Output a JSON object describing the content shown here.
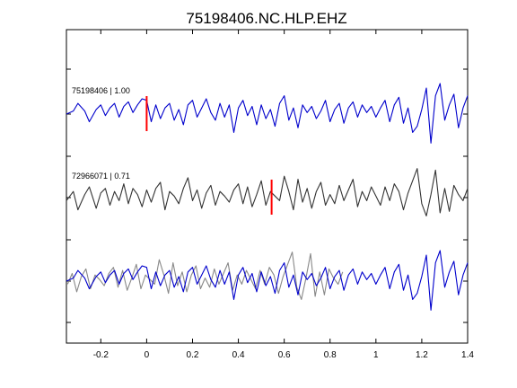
{
  "chart_data": {
    "type": "line",
    "title": "75198406.NC.HLP.EHZ",
    "xlim": [
      -0.35,
      1.4
    ],
    "x_ticks": [
      "-0.2",
      "0",
      "0.2",
      "0.4",
      "0.6",
      "0.8",
      "1",
      "1.2",
      "1.4"
    ],
    "x_tick_values": [
      -0.2,
      0,
      0.2,
      0.4,
      0.6,
      0.8,
      1.0,
      1.2,
      1.4
    ],
    "grid": false,
    "traces": [
      {
        "label": "75198406 | 1.00",
        "color": "#0000cc",
        "pick_time": 0.0,
        "pick_color": "#ff0000",
        "x": [
          -0.35,
          -0.32,
          -0.3,
          -0.27,
          -0.25,
          -0.22,
          -0.2,
          -0.18,
          -0.16,
          -0.14,
          -0.12,
          -0.1,
          -0.08,
          -0.06,
          -0.04,
          -0.02,
          0,
          0.02,
          0.04,
          0.06,
          0.08,
          0.1,
          0.12,
          0.14,
          0.16,
          0.18,
          0.2,
          0.22,
          0.24,
          0.26,
          0.28,
          0.3,
          0.32,
          0.34,
          0.36,
          0.38,
          0.4,
          0.42,
          0.44,
          0.46,
          0.48,
          0.5,
          0.52,
          0.54,
          0.56,
          0.58,
          0.6,
          0.62,
          0.64,
          0.66,
          0.68,
          0.7,
          0.72,
          0.74,
          0.76,
          0.78,
          0.8,
          0.82,
          0.84,
          0.86,
          0.88,
          0.9,
          0.92,
          0.94,
          0.96,
          0.98,
          1.0,
          1.02,
          1.04,
          1.06,
          1.08,
          1.1,
          1.12,
          1.14,
          1.16,
          1.18,
          1.2,
          1.22,
          1.24,
          1.26,
          1.28,
          1.3,
          1.32,
          1.34,
          1.36,
          1.38,
          1.4
        ],
        "y": [
          0,
          0.1,
          0.35,
          0.1,
          -0.25,
          0.15,
          0.3,
          -0.05,
          0.2,
          0.35,
          -0.1,
          0.25,
          0.4,
          0.05,
          0.3,
          0.5,
          0.45,
          -0.25,
          0.3,
          -0.15,
          0.2,
          0.35,
          -0.2,
          0.15,
          -0.35,
          0.3,
          0.45,
          -0.1,
          0.2,
          0.5,
          0.05,
          -0.2,
          0.35,
          -0.1,
          0.3,
          -0.6,
          0.2,
          0.45,
          -0.05,
          0.25,
          -0.35,
          0.3,
          -0.15,
          0.15,
          -0.4,
          0.35,
          0.6,
          -0.2,
          0.2,
          -0.45,
          0.3,
          0.05,
          0.25,
          -0.15,
          0.1,
          0.45,
          -0.25,
          0.15,
          0.35,
          -0.3,
          0.2,
          0.4,
          -0.1,
          0.3,
          0.05,
          0.25,
          -0.1,
          0.2,
          0.45,
          -0.25,
          0.3,
          0.55,
          -0.3,
          0.2,
          -0.6,
          -0.4,
          0.15,
          0.85,
          -0.95,
          0.6,
          1.0,
          -0.2,
          0.3,
          0.65,
          -0.45,
          0.2,
          0.6
        ]
      },
      {
        "label": "72966071 | 0.71",
        "color": "#333333",
        "pick_time": 0.545,
        "pick_color": "#ff0000",
        "x": [
          -0.35,
          -0.32,
          -0.3,
          -0.27,
          -0.25,
          -0.22,
          -0.2,
          -0.18,
          -0.16,
          -0.14,
          -0.12,
          -0.1,
          -0.08,
          -0.06,
          -0.04,
          -0.02,
          0,
          0.02,
          0.04,
          0.06,
          0.08,
          0.1,
          0.12,
          0.14,
          0.16,
          0.18,
          0.2,
          0.22,
          0.24,
          0.26,
          0.28,
          0.3,
          0.32,
          0.34,
          0.36,
          0.38,
          0.4,
          0.42,
          0.44,
          0.46,
          0.48,
          0.5,
          0.52,
          0.54,
          0.56,
          0.58,
          0.6,
          0.62,
          0.64,
          0.66,
          0.68,
          0.7,
          0.72,
          0.74,
          0.76,
          0.78,
          0.8,
          0.82,
          0.84,
          0.86,
          0.88,
          0.9,
          0.92,
          0.94,
          0.96,
          0.98,
          1.0,
          1.02,
          1.04,
          1.06,
          1.08,
          1.1,
          1.12,
          1.14,
          1.16,
          1.18,
          1.2,
          1.22,
          1.24,
          1.26,
          1.28,
          1.3,
          1.32,
          1.34,
          1.36,
          1.38,
          1.4
        ],
        "y": [
          -0.1,
          0.2,
          -0.4,
          0.1,
          0.35,
          -0.35,
          0.15,
          0.3,
          -0.25,
          0.2,
          -0.1,
          0.45,
          -0.2,
          0.3,
          0.1,
          -0.3,
          0.25,
          -0.15,
          0.3,
          0.5,
          -0.4,
          0.2,
          0.05,
          -0.2,
          0.3,
          0.65,
          -0.1,
          0.25,
          -0.35,
          0.15,
          0.4,
          -0.25,
          0.2,
          0.05,
          -0.15,
          0.25,
          0.45,
          -0.2,
          0.35,
          -0.3,
          0.1,
          0.55,
          -0.25,
          0.2,
          0.05,
          -0.1,
          0.7,
          0.2,
          -0.4,
          0.6,
          -0.15,
          0.3,
          -0.35,
          0.2,
          0.5,
          -0.25,
          0.1,
          -0.2,
          0.4,
          -0.1,
          0.25,
          0.6,
          -0.3,
          0.2,
          -0.1,
          0.35,
          0.05,
          -0.25,
          0.35,
          -0.1,
          0.45,
          0.2,
          -0.4,
          0.15,
          0.55,
          0.95,
          -0.2,
          -0.6,
          0.1,
          0.9,
          -0.5,
          0.3,
          -0.45,
          0.4,
          0.1,
          -0.1,
          0.3
        ]
      },
      {
        "label": "",
        "color": "#0000cc",
        "overlay_color": "#888888",
        "overlay": true
      }
    ]
  }
}
